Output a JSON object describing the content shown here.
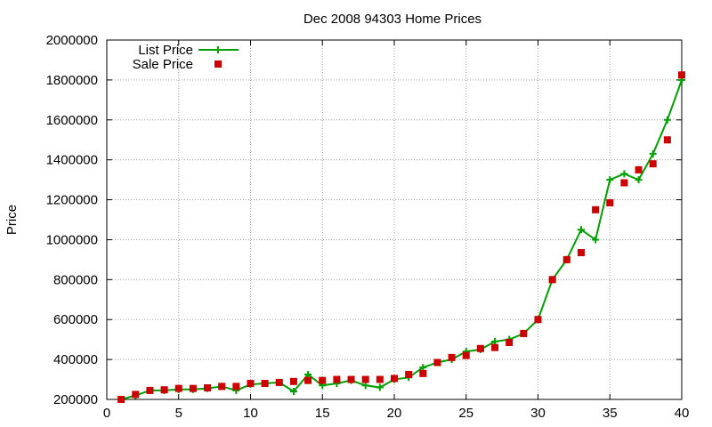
{
  "chart_data": {
    "type": "line",
    "title": "Dec 2008 94303 Home Prices",
    "xlabel": "",
    "ylabel": "Price",
    "xlim": [
      0,
      40
    ],
    "ylim": [
      200000,
      2000000
    ],
    "x_ticks": [
      0,
      5,
      10,
      15,
      20,
      25,
      30,
      35,
      40
    ],
    "y_ticks": [
      200000,
      400000,
      600000,
      800000,
      1000000,
      1200000,
      1400000,
      1600000,
      1800000,
      2000000
    ],
    "grid": true,
    "legend_position": "top-left",
    "series": [
      {
        "name": "List Price",
        "style": "line-with-plus-markers",
        "color": "#00a000",
        "x": [
          1,
          2,
          3,
          4,
          5,
          6,
          7,
          8,
          9,
          10,
          11,
          12,
          13,
          14,
          15,
          16,
          17,
          18,
          19,
          20,
          21,
          22,
          23,
          24,
          25,
          26,
          27,
          28,
          29,
          30,
          31,
          32,
          33,
          34,
          35,
          36,
          37,
          38,
          39,
          40
        ],
        "values": [
          200000,
          220000,
          245000,
          245000,
          250000,
          250000,
          255000,
          265000,
          245000,
          275000,
          280000,
          285000,
          240000,
          325000,
          270000,
          280000,
          295000,
          270000,
          260000,
          300000,
          310000,
          360000,
          385000,
          400000,
          440000,
          450000,
          490000,
          500000,
          530000,
          600000,
          800000,
          900000,
          1050000,
          1000000,
          1300000,
          1330000,
          1300000,
          1430000,
          1600000,
          1800000
        ]
      },
      {
        "name": "Sale Price",
        "style": "square-markers",
        "color": "#cc0000",
        "x": [
          1,
          2,
          3,
          4,
          5,
          6,
          7,
          8,
          9,
          10,
          11,
          12,
          13,
          14,
          15,
          16,
          17,
          18,
          19,
          20,
          21,
          22,
          23,
          24,
          25,
          26,
          27,
          28,
          29,
          30,
          31,
          32,
          33,
          34,
          35,
          36,
          37,
          38,
          39,
          40
        ],
        "values": [
          200000,
          225000,
          245000,
          248000,
          255000,
          255000,
          258000,
          265000,
          265000,
          280000,
          280000,
          285000,
          290000,
          295000,
          295000,
          300000,
          300000,
          300000,
          300000,
          305000,
          325000,
          330000,
          385000,
          410000,
          420000,
          455000,
          460000,
          485000,
          530000,
          600000,
          800000,
          900000,
          935000,
          1150000,
          1185000,
          1285000,
          1350000,
          1380000,
          1500000,
          1825000
        ]
      }
    ]
  }
}
